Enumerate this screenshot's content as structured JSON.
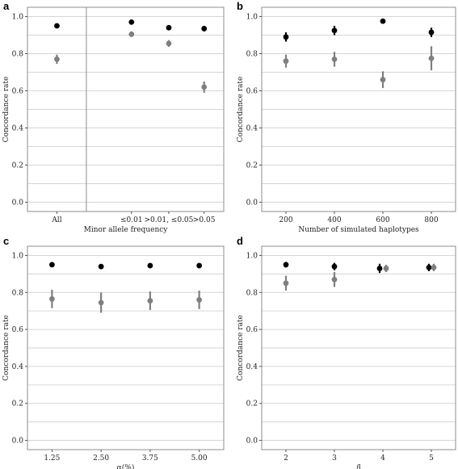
{
  "colors": {
    "series_dark": "#000000",
    "series_gray": "#7f7f7f",
    "grid": "#d6d6d6",
    "frame": "#8c8c8c"
  },
  "chart_data": [
    {
      "panel": "a",
      "type": "scatter",
      "xlabel": "Minor allele frequency",
      "ylabel": "Concordance rate",
      "ylim": [
        -0.05,
        1.05
      ],
      "yticks": [
        0.0,
        0.2,
        0.4,
        0.6,
        0.8,
        1.0
      ],
      "ytick_labels": [
        "0.0",
        "0.2",
        "0.4",
        "0.6",
        "0.8",
        "1.0"
      ],
      "categories": [
        "All",
        "≤0.01",
        ">0.01, ≤0.05",
        ">0.05"
      ],
      "separator_after_category": 0,
      "grid": true,
      "series": [
        {
          "color": "#000000",
          "values": [
            0.95,
            0.97,
            0.94,
            0.935
          ],
          "err": [
            0.005,
            0.008,
            0.008,
            0.015
          ]
        },
        {
          "color": "#7f7f7f",
          "values": [
            0.77,
            0.905,
            0.855,
            0.62
          ],
          "err": [
            0.025,
            0.015,
            0.018,
            0.03
          ]
        }
      ]
    },
    {
      "panel": "b",
      "type": "scatter",
      "xlabel": "Number of simulated haplotypes",
      "ylabel": "Concordance rate",
      "ylim": [
        -0.05,
        1.05
      ],
      "yticks": [
        0.0,
        0.2,
        0.4,
        0.6,
        0.8,
        1.0
      ],
      "ytick_labels": [
        "0.0",
        "0.2",
        "0.4",
        "0.6",
        "0.8",
        "1.0"
      ],
      "categories": [
        "200",
        "400",
        "600",
        "800"
      ],
      "grid": true,
      "series": [
        {
          "color": "#000000",
          "values": [
            0.89,
            0.925,
            0.975,
            0.915
          ],
          "err": [
            0.025,
            0.025,
            0.008,
            0.025
          ]
        },
        {
          "color": "#7f7f7f",
          "values": [
            0.76,
            0.77,
            0.66,
            0.775
          ],
          "err": [
            0.035,
            0.04,
            0.045,
            0.065
          ]
        }
      ]
    },
    {
      "panel": "c",
      "type": "scatter",
      "xlabel": "α(%)",
      "ylabel": "Concordance rate",
      "ylim": [
        -0.05,
        1.05
      ],
      "yticks": [
        0.0,
        0.2,
        0.4,
        0.6,
        0.8,
        1.0
      ],
      "ytick_labels": [
        "0.0",
        "0.2",
        "0.4",
        "0.6",
        "0.8",
        "1.0"
      ],
      "categories": [
        "1.25",
        "2.50",
        "3.75",
        "5.00"
      ],
      "grid": true,
      "series": [
        {
          "color": "#000000",
          "values": [
            0.95,
            0.94,
            0.945,
            0.945
          ],
          "err": [
            0.008,
            0.01,
            0.008,
            0.008
          ]
        },
        {
          "color": "#7f7f7f",
          "values": [
            0.765,
            0.745,
            0.755,
            0.76
          ],
          "err": [
            0.05,
            0.055,
            0.05,
            0.05
          ]
        }
      ]
    },
    {
      "panel": "d",
      "type": "scatter",
      "xlabel": "β",
      "ylabel": "Concordance rate",
      "ylim": [
        -0.05,
        1.05
      ],
      "yticks": [
        0.0,
        0.2,
        0.4,
        0.6,
        0.8,
        1.0
      ],
      "ytick_labels": [
        "0.0",
        "0.2",
        "0.4",
        "0.6",
        "0.8",
        "1.0"
      ],
      "categories": [
        "2",
        "3",
        "4",
        "5"
      ],
      "grid": true,
      "series": [
        {
          "color": "#000000",
          "values": [
            0.95,
            0.94,
            0.93,
            0.935
          ],
          "err": [
            0.015,
            0.02,
            0.025,
            0.02
          ]
        },
        {
          "color": "#7f7f7f",
          "values": [
            0.85,
            0.87,
            0.93,
            0.935
          ],
          "err": [
            0.04,
            0.04,
            0.02,
            0.02
          ]
        }
      ]
    }
  ]
}
